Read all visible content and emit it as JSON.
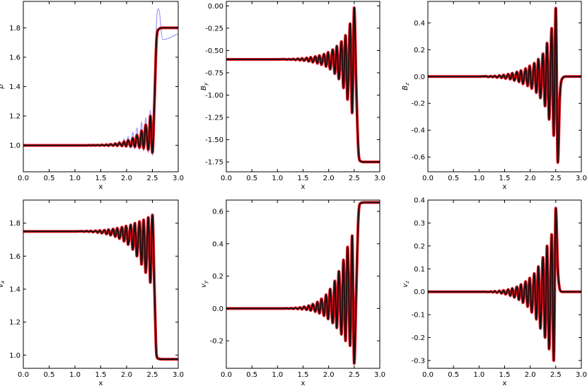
{
  "chart_data": [
    {
      "type": "line",
      "xlabel": "x",
      "ylabel": "ρ",
      "ylabel_sub": "",
      "xlim": [
        0,
        3
      ],
      "ylim": [
        0.82,
        1.98
      ],
      "xticks": [
        {
          "value": 0,
          "label": "0.0"
        },
        0.5,
        {
          "value": 1,
          "label": "1.0"
        },
        1.5,
        {
          "value": 2,
          "label": "2.0"
        },
        2.5,
        {
          "value": 3,
          "label": "3.0"
        }
      ],
      "yticks": [
        {
          "value": 1,
          "label": "1.0"
        },
        1.2,
        1.4,
        1.6,
        1.8
      ],
      "x": [
        0,
        1.0,
        1.14,
        1.18,
        1.23,
        1.27,
        1.31,
        1.35,
        1.4,
        1.44,
        1.48,
        1.52,
        1.57,
        1.61,
        1.65,
        1.69,
        1.74,
        1.78,
        1.82,
        1.86,
        1.91,
        1.95,
        1.99,
        2.03,
        2.08,
        2.12,
        2.16,
        2.2,
        2.25,
        2.29,
        2.33,
        2.37,
        2.42,
        2.46,
        2.5,
        2.54,
        2.58,
        2.62,
        2.7,
        3.0
      ],
      "series": [
        {
          "color": "#7f7fff",
          "values": [
            1,
            1,
            1.0,
            1.0,
            1.0,
            1.002,
            0.999,
            1.002,
            0.999,
            1.003,
            0.998,
            1.005,
            0.997,
            1.008,
            0.996,
            1.013,
            0.995,
            1.02,
            0.993,
            1.03,
            0.99,
            1.045,
            0.985,
            1.06,
            0.98,
            1.09,
            0.975,
            1.12,
            0.97,
            1.16,
            0.96,
            1.19,
            0.95,
            1.24,
            0.93,
            1.35,
            1.85,
            1.93,
            1.72,
            1.76
          ]
        },
        {
          "color": "#e8101c",
          "values": [
            1,
            1,
            1.0,
            1.0,
            1.0,
            1.001,
            1.0,
            1.001,
            1.0,
            1.002,
            0.999,
            1.003,
            0.999,
            1.005,
            0.998,
            1.008,
            0.998,
            1.012,
            0.997,
            1.017,
            0.996,
            1.025,
            0.994,
            1.035,
            0.992,
            1.05,
            0.99,
            1.07,
            0.985,
            1.1,
            0.98,
            1.14,
            0.97,
            1.2,
            0.95,
            1.3,
            1.72,
            1.79,
            1.8,
            1.8
          ]
        },
        {
          "color": "#111111",
          "values": [
            1,
            1,
            1.0,
            1.0,
            1.0,
            1.001,
            1.0,
            1.001,
            1.0,
            1.002,
            0.999,
            1.003,
            0.999,
            1.005,
            0.998,
            1.008,
            0.998,
            1.012,
            0.997,
            1.017,
            0.996,
            1.025,
            0.994,
            1.035,
            0.992,
            1.05,
            0.99,
            1.07,
            0.985,
            1.1,
            0.98,
            1.14,
            0.97,
            1.2,
            0.95,
            1.3,
            1.72,
            1.79,
            1.8,
            1.8
          ]
        }
      ]
    },
    {
      "type": "line",
      "xlabel": "x",
      "ylabel": "B",
      "ylabel_sub": "y",
      "xlim": [
        0,
        3
      ],
      "ylim": [
        -1.86,
        0.05
      ],
      "xticks": [
        {
          "value": 0,
          "label": "0.0"
        },
        0.5,
        {
          "value": 1,
          "label": "1.0"
        },
        1.5,
        {
          "value": 2,
          "label": "2.0"
        },
        2.5,
        {
          "value": 3,
          "label": "3.0"
        }
      ],
      "yticks": [
        -1.75,
        {
          "value": -1.5,
          "label": "-1.50"
        },
        -1.25,
        {
          "value": -1,
          "label": "-1.00"
        },
        -0.75,
        {
          "value": -0.5,
          "label": "-0.50"
        },
        -0.25,
        {
          "value": 0,
          "label": "0.00"
        }
      ],
      "x": [
        0,
        1.0,
        1.14,
        1.18,
        1.23,
        1.27,
        1.31,
        1.35,
        1.4,
        1.44,
        1.48,
        1.52,
        1.57,
        1.61,
        1.65,
        1.69,
        1.74,
        1.78,
        1.82,
        1.86,
        1.91,
        1.95,
        1.99,
        2.03,
        2.08,
        2.12,
        2.16,
        2.2,
        2.25,
        2.29,
        2.33,
        2.37,
        2.42,
        2.46,
        2.5,
        2.54,
        2.58,
        2.62,
        2.7,
        3.0
      ],
      "series": [
        {
          "color": "#e8101c",
          "values": [
            -0.6,
            -0.6,
            -0.598,
            -0.602,
            -0.597,
            -0.603,
            -0.595,
            -0.606,
            -0.592,
            -0.61,
            -0.588,
            -0.615,
            -0.583,
            -0.622,
            -0.576,
            -0.632,
            -0.567,
            -0.645,
            -0.555,
            -0.66,
            -0.54,
            -0.68,
            -0.52,
            -0.71,
            -0.49,
            -0.76,
            -0.45,
            -0.82,
            -0.4,
            -0.92,
            -0.33,
            -1.05,
            -0.2,
            -1.2,
            -0.02,
            -0.9,
            -1.6,
            -1.74,
            -1.75,
            -1.75
          ]
        },
        {
          "color": "#111111",
          "values": [
            -0.6,
            -0.6,
            -0.598,
            -0.602,
            -0.597,
            -0.603,
            -0.595,
            -0.606,
            -0.592,
            -0.61,
            -0.588,
            -0.615,
            -0.583,
            -0.622,
            -0.576,
            -0.632,
            -0.567,
            -0.645,
            -0.555,
            -0.66,
            -0.54,
            -0.68,
            -0.52,
            -0.71,
            -0.49,
            -0.76,
            -0.45,
            -0.82,
            -0.4,
            -0.92,
            -0.33,
            -1.05,
            -0.2,
            -1.2,
            -0.02,
            -0.9,
            -1.6,
            -1.74,
            -1.75,
            -1.75
          ]
        }
      ]
    },
    {
      "type": "line",
      "xlabel": "x",
      "ylabel": "B",
      "ylabel_sub": "z",
      "xlim": [
        0,
        3
      ],
      "ylim": [
        -0.71,
        0.56
      ],
      "xticks": [
        {
          "value": 0,
          "label": "0.0"
        },
        0.5,
        {
          "value": 1,
          "label": "1.0"
        },
        1.5,
        {
          "value": 2,
          "label": "2.0"
        },
        2.5,
        {
          "value": 3,
          "label": "3.0"
        }
      ],
      "yticks": [
        -0.6,
        -0.4,
        -0.2,
        {
          "value": 0,
          "label": "0.0"
        },
        0.2,
        0.4
      ],
      "x": [
        0,
        1.0,
        1.14,
        1.18,
        1.23,
        1.27,
        1.31,
        1.35,
        1.4,
        1.44,
        1.48,
        1.52,
        1.57,
        1.61,
        1.65,
        1.69,
        1.74,
        1.78,
        1.82,
        1.86,
        1.91,
        1.95,
        1.99,
        2.03,
        2.08,
        2.12,
        2.16,
        2.2,
        2.25,
        2.29,
        2.33,
        2.37,
        2.42,
        2.46,
        2.5,
        2.54,
        2.58,
        2.62,
        2.7,
        3.0
      ],
      "series": [
        {
          "color": "#e8101c",
          "values": [
            0,
            0,
            0.002,
            -0.003,
            0.003,
            -0.004,
            0.005,
            -0.007,
            0.008,
            -0.01,
            0.012,
            -0.015,
            0.018,
            -0.02,
            0.025,
            -0.03,
            0.035,
            -0.04,
            0.045,
            -0.055,
            0.06,
            -0.07,
            0.08,
            -0.09,
            0.1,
            -0.12,
            0.13,
            -0.16,
            0.17,
            -0.22,
            0.25,
            -0.32,
            0.36,
            -0.44,
            0.51,
            -0.64,
            -0.15,
            -0.02,
            0,
            0
          ]
        },
        {
          "color": "#111111",
          "values": [
            0,
            0,
            0.002,
            -0.003,
            0.003,
            -0.004,
            0.005,
            -0.007,
            0.008,
            -0.01,
            0.012,
            -0.015,
            0.018,
            -0.02,
            0.025,
            -0.03,
            0.035,
            -0.04,
            0.045,
            -0.055,
            0.06,
            -0.07,
            0.08,
            -0.09,
            0.1,
            -0.12,
            0.13,
            -0.16,
            0.17,
            -0.22,
            0.25,
            -0.32,
            0.36,
            -0.44,
            0.51,
            -0.64,
            -0.15,
            -0.02,
            0,
            0
          ]
        }
      ]
    },
    {
      "type": "line",
      "xlabel": "x",
      "ylabel": "v",
      "ylabel_sub": "x",
      "xlim": [
        0,
        3
      ],
      "ylim": [
        0.92,
        1.94
      ],
      "xticks": [
        {
          "value": 0,
          "label": "0.0"
        },
        0.5,
        {
          "value": 1,
          "label": "1.0"
        },
        1.5,
        {
          "value": 2,
          "label": "2.0"
        },
        2.5,
        {
          "value": 3,
          "label": "3.0"
        }
      ],
      "yticks": [
        {
          "value": 1,
          "label": "1.0"
        },
        1.2,
        1.4,
        1.6,
        1.8
      ],
      "x": [
        0,
        1.0,
        1.14,
        1.18,
        1.23,
        1.27,
        1.31,
        1.35,
        1.4,
        1.44,
        1.48,
        1.52,
        1.57,
        1.61,
        1.65,
        1.69,
        1.74,
        1.78,
        1.82,
        1.86,
        1.91,
        1.95,
        1.99,
        2.03,
        2.08,
        2.12,
        2.16,
        2.2,
        2.25,
        2.29,
        2.33,
        2.37,
        2.42,
        2.46,
        2.5,
        2.54,
        2.58,
        2.62,
        2.7,
        3.0
      ],
      "series": [
        {
          "color": "#e8101c",
          "values": [
            1.75,
            1.75,
            1.751,
            1.749,
            1.752,
            1.748,
            1.753,
            1.746,
            1.754,
            1.743,
            1.756,
            1.739,
            1.758,
            1.734,
            1.761,
            1.727,
            1.765,
            1.718,
            1.77,
            1.706,
            1.776,
            1.69,
            1.783,
            1.67,
            1.79,
            1.64,
            1.8,
            1.6,
            1.81,
            1.55,
            1.82,
            1.5,
            1.835,
            1.44,
            1.85,
            1.4,
            1.0,
            0.978,
            0.975,
            0.975
          ]
        },
        {
          "color": "#111111",
          "values": [
            1.75,
            1.75,
            1.751,
            1.749,
            1.752,
            1.748,
            1.753,
            1.746,
            1.754,
            1.743,
            1.756,
            1.739,
            1.758,
            1.734,
            1.761,
            1.727,
            1.765,
            1.718,
            1.77,
            1.706,
            1.776,
            1.69,
            1.783,
            1.67,
            1.79,
            1.64,
            1.8,
            1.6,
            1.81,
            1.55,
            1.82,
            1.5,
            1.835,
            1.44,
            1.85,
            1.4,
            1.0,
            0.978,
            0.975,
            0.975
          ]
        }
      ]
    },
    {
      "type": "line",
      "xlabel": "x",
      "ylabel": "v",
      "ylabel_sub": "y",
      "xlim": [
        0,
        3
      ],
      "ylim": [
        -0.37,
        0.67
      ],
      "xticks": [
        {
          "value": 0,
          "label": "0.0"
        },
        0.5,
        {
          "value": 1,
          "label": "1.0"
        },
        1.5,
        {
          "value": 2,
          "label": "2.0"
        },
        2.5,
        {
          "value": 3,
          "label": "3.0"
        }
      ],
      "yticks": [
        -0.2,
        {
          "value": 0,
          "label": "0.0"
        },
        0.2,
        0.4,
        0.6
      ],
      "x": [
        0,
        1.0,
        1.14,
        1.18,
        1.23,
        1.27,
        1.31,
        1.35,
        1.4,
        1.44,
        1.48,
        1.52,
        1.57,
        1.61,
        1.65,
        1.69,
        1.74,
        1.78,
        1.82,
        1.86,
        1.91,
        1.95,
        1.99,
        2.03,
        2.08,
        2.12,
        2.16,
        2.2,
        2.25,
        2.29,
        2.33,
        2.37,
        2.42,
        2.46,
        2.5,
        2.54,
        2.58,
        2.62,
        2.7,
        3.0
      ],
      "series": [
        {
          "color": "#e8101c",
          "values": [
            0,
            0,
            0,
            0.001,
            -0.001,
            0.002,
            -0.002,
            0.004,
            -0.003,
            0.007,
            -0.005,
            0.011,
            -0.008,
            0.018,
            -0.013,
            0.027,
            -0.02,
            0.04,
            -0.03,
            0.06,
            -0.045,
            0.085,
            -0.065,
            0.12,
            -0.09,
            0.17,
            -0.12,
            0.23,
            -0.16,
            0.3,
            -0.2,
            0.38,
            -0.23,
            0.45,
            -0.34,
            0.1,
            0.55,
            0.65,
            0.655,
            0.655
          ]
        },
        {
          "color": "#111111",
          "values": [
            0,
            0,
            0,
            0.001,
            -0.001,
            0.002,
            -0.002,
            0.004,
            -0.003,
            0.007,
            -0.005,
            0.011,
            -0.008,
            0.018,
            -0.013,
            0.027,
            -0.02,
            0.04,
            -0.03,
            0.06,
            -0.045,
            0.085,
            -0.065,
            0.12,
            -0.09,
            0.17,
            -0.12,
            0.23,
            -0.16,
            0.3,
            -0.2,
            0.38,
            -0.23,
            0.45,
            -0.34,
            0.1,
            0.55,
            0.65,
            0.655,
            0.655
          ]
        }
      ]
    },
    {
      "type": "line",
      "xlabel": "x",
      "ylabel": "v",
      "ylabel_sub": "z",
      "xlim": [
        0,
        3
      ],
      "ylim": [
        -0.334,
        0.4
      ],
      "xticks": [
        {
          "value": 0,
          "label": "0.0"
        },
        0.5,
        {
          "value": 1,
          "label": "1.0"
        },
        1.5,
        {
          "value": 2,
          "label": "2.0"
        },
        2.5,
        {
          "value": 3,
          "label": "3.0"
        }
      ],
      "yticks": [
        -0.3,
        -0.2,
        -0.1,
        {
          "value": 0,
          "label": "0.0"
        },
        0.1,
        0.2,
        0.3,
        0.4
      ],
      "x": [
        0,
        1.0,
        1.14,
        1.18,
        1.23,
        1.27,
        1.31,
        1.35,
        1.4,
        1.44,
        1.48,
        1.52,
        1.57,
        1.61,
        1.65,
        1.69,
        1.74,
        1.78,
        1.82,
        1.86,
        1.91,
        1.95,
        1.99,
        2.03,
        2.08,
        2.12,
        2.16,
        2.2,
        2.25,
        2.29,
        2.33,
        2.37,
        2.42,
        2.46,
        2.5,
        2.54,
        2.58,
        2.62,
        2.7,
        3.0
      ],
      "series": [
        {
          "color": "#e8101c",
          "values": [
            0,
            0,
            0,
            -0.001,
            0.001,
            -0.002,
            0.002,
            -0.004,
            0.004,
            -0.007,
            0.006,
            -0.011,
            0.01,
            -0.017,
            0.015,
            -0.025,
            0.022,
            -0.035,
            0.032,
            -0.048,
            0.045,
            -0.065,
            0.06,
            -0.09,
            0.08,
            -0.12,
            0.11,
            -0.16,
            0.15,
            -0.2,
            0.2,
            -0.25,
            0.25,
            -0.3,
            0.365,
            0.1,
            0.01,
            0,
            0,
            0
          ]
        },
        {
          "color": "#111111",
          "values": [
            0,
            0,
            0,
            -0.001,
            0.001,
            -0.002,
            0.002,
            -0.004,
            0.004,
            -0.007,
            0.006,
            -0.011,
            0.01,
            -0.017,
            0.015,
            -0.025,
            0.022,
            -0.035,
            0.032,
            -0.048,
            0.045,
            -0.065,
            0.06,
            -0.09,
            0.08,
            -0.12,
            0.11,
            -0.16,
            0.15,
            -0.2,
            0.2,
            -0.25,
            0.25,
            -0.3,
            0.365,
            0.1,
            0.01,
            0,
            0,
            0
          ]
        }
      ]
    }
  ]
}
